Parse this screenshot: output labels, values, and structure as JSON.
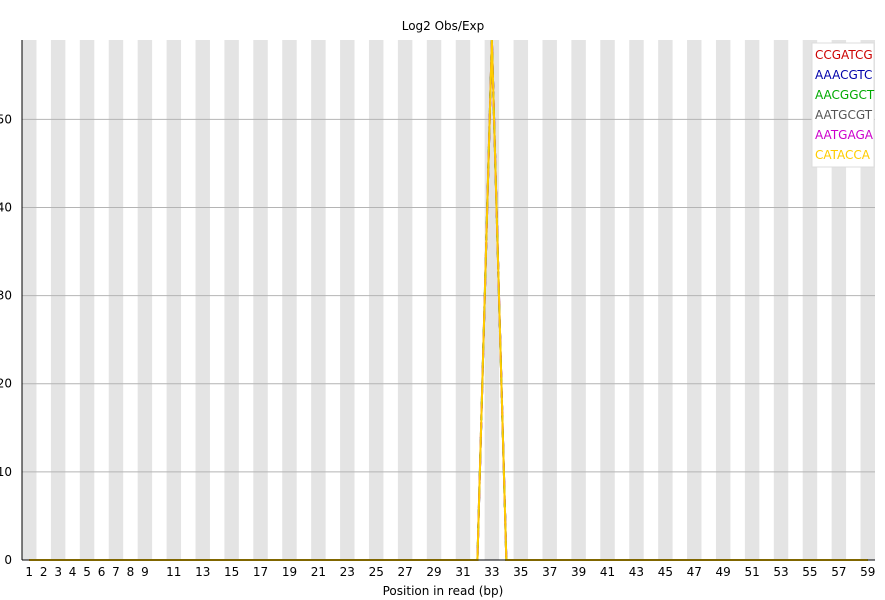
{
  "chart_data": {
    "type": "line",
    "title": "Log2 Obs/Exp",
    "xlabel": "Position in read (bp)",
    "ylabel": "",
    "ylim": [
      0,
      59
    ],
    "y_ticks": [
      0,
      10,
      20,
      30,
      40,
      50
    ],
    "x_positions": [
      1,
      2,
      3,
      4,
      5,
      6,
      7,
      8,
      9,
      10,
      11,
      12,
      13,
      14,
      15,
      16,
      17,
      18,
      19,
      20,
      21,
      22,
      23,
      24,
      25,
      26,
      27,
      28,
      29,
      30,
      31,
      32,
      33,
      34,
      35,
      36,
      37,
      38,
      39,
      40,
      41,
      42,
      43,
      44,
      45,
      46,
      47,
      48,
      49,
      50,
      51,
      52,
      53,
      54,
      55,
      56,
      57,
      58,
      59
    ],
    "x_tick_labels": [
      "1",
      "2",
      "3",
      "4",
      "5",
      "6",
      "7",
      "8",
      "9",
      "11",
      "13",
      "15",
      "17",
      "19",
      "21",
      "23",
      "25",
      "27",
      "29",
      "31",
      "33",
      "35",
      "37",
      "39",
      "41",
      "43",
      "45",
      "47",
      "49",
      "51",
      "53",
      "55",
      "57",
      "59"
    ],
    "grid": true,
    "striped_background": true,
    "legend_position": "top-right",
    "series": [
      {
        "name": "CCGATCG",
        "color": "#cc0000",
        "values": [
          0,
          0,
          0,
          0,
          0,
          0,
          0,
          0,
          0,
          0,
          0,
          0,
          0,
          0,
          0,
          0,
          0,
          0,
          0,
          0,
          0,
          0,
          0,
          0,
          0,
          0,
          0,
          0,
          0,
          0,
          0,
          0,
          59,
          0,
          0,
          0,
          0,
          0,
          0,
          0,
          0,
          0,
          0,
          0,
          0,
          0,
          0,
          0,
          0,
          0,
          0,
          0,
          0,
          0,
          0,
          0,
          0,
          0,
          0
        ]
      },
      {
        "name": "AAACGTC",
        "color": "#0000aa",
        "values": [
          0,
          0,
          0,
          0,
          0,
          0,
          0,
          0,
          0,
          0,
          0,
          0,
          0,
          0,
          0,
          0,
          0,
          0,
          0,
          0,
          0,
          0,
          0,
          0,
          0,
          0,
          0,
          0,
          0,
          0,
          0,
          0,
          59,
          0,
          0,
          0,
          0,
          0,
          0,
          0,
          0,
          0,
          0,
          0,
          0,
          0,
          0,
          0,
          0,
          0,
          0,
          0,
          0,
          0,
          0,
          0,
          0,
          0,
          0
        ]
      },
      {
        "name": "AACGGCT",
        "color": "#00aa00",
        "values": [
          0,
          0,
          0,
          0,
          0,
          0,
          0,
          0,
          0,
          0,
          0,
          0,
          0,
          0,
          0,
          0,
          0,
          0,
          0,
          0,
          0,
          0,
          0,
          0,
          0,
          0,
          0,
          0,
          0,
          0,
          0,
          0,
          59,
          0,
          0,
          0,
          0,
          0,
          0,
          0,
          0,
          0,
          0,
          0,
          0,
          0,
          0,
          0,
          0,
          0,
          0,
          0,
          0,
          0,
          0,
          0,
          0,
          0,
          0
        ]
      },
      {
        "name": "AATGCGT",
        "color": "#555555",
        "values": [
          0,
          0,
          0,
          0,
          0,
          0,
          0,
          0,
          0,
          0,
          0,
          0,
          0,
          0,
          0,
          0,
          0,
          0,
          0,
          0,
          0,
          0,
          0,
          0,
          0,
          0,
          0,
          0,
          0,
          0,
          0,
          0,
          59,
          0,
          0,
          0,
          0,
          0,
          0,
          0,
          0,
          0,
          0,
          0,
          0,
          0,
          0,
          0,
          0,
          0,
          0,
          0,
          0,
          0,
          0,
          0,
          0,
          0,
          0
        ]
      },
      {
        "name": "AATGAGA",
        "color": "#cc00cc",
        "values": [
          0,
          0,
          0,
          0,
          0,
          0,
          0,
          0,
          0,
          0,
          0,
          0,
          0,
          0,
          0,
          0,
          0,
          0,
          0,
          0,
          0,
          0,
          0,
          0,
          0,
          0,
          0,
          0,
          0,
          0,
          0,
          0,
          59,
          0,
          0,
          0,
          0,
          0,
          0,
          0,
          0,
          0,
          0,
          0,
          0,
          0,
          0,
          0,
          0,
          0,
          0,
          0,
          0,
          0,
          0,
          0,
          0,
          0,
          0
        ]
      },
      {
        "name": "CATACCA",
        "color": "#ffcc00",
        "values": [
          0,
          0,
          0,
          0,
          0,
          0,
          0,
          0,
          0,
          0,
          0,
          0,
          0,
          0,
          0,
          0,
          0,
          0,
          0,
          0,
          0,
          0,
          0,
          0,
          0,
          0,
          0,
          0,
          0,
          0,
          0,
          0,
          59,
          0,
          0,
          0,
          0,
          0,
          0,
          0,
          0,
          0,
          0,
          0,
          0,
          0,
          0,
          0,
          0,
          0,
          0,
          0,
          0,
          0,
          0,
          0,
          0,
          0,
          0
        ]
      }
    ]
  }
}
